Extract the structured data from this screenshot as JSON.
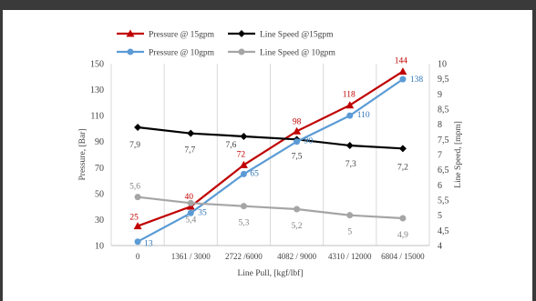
{
  "chart_data": {
    "type": "line",
    "categories": [
      "0",
      "1361 / 3000",
      "2722 /6000",
      "4082 / 9000",
      "4310 / 12000",
      "6804 / 15000"
    ],
    "xlabel": "Line Pull, [kgf/lbf]",
    "ylabel": "Pressure, [Bar]",
    "y2label": "Line Speed, [mpm]",
    "ylim": [
      10,
      150
    ],
    "yticks": [
      10,
      30,
      50,
      70,
      90,
      110,
      130,
      150
    ],
    "y2lim": [
      4,
      10
    ],
    "y2ticks": [
      "4",
      "4,5",
      "5",
      "5,5",
      "6",
      "6,5",
      "7",
      "7,5",
      "8",
      "8,5",
      "9",
      "9,5",
      "10"
    ],
    "grid": "vertical",
    "legend_position": "top",
    "series": [
      {
        "name": "Pressure @ 15gpm",
        "axis": "left",
        "color": "#c00000",
        "marker": "triangle",
        "values": [
          25,
          40,
          72,
          98,
          118,
          144
        ],
        "labels": [
          "25",
          "40",
          "72",
          "98",
          "118",
          "144"
        ]
      },
      {
        "name": "Line Speed @15gpm",
        "axis": "right",
        "color": "#000000",
        "marker": "diamond",
        "values": [
          7.9,
          7.7,
          7.6,
          7.5,
          7.3,
          7.2
        ],
        "labels": [
          "7,9",
          "7,7",
          "7,6",
          "7,5",
          "7,3",
          "7,2"
        ]
      },
      {
        "name": "Pressure @ 10gpm",
        "axis": "left",
        "color": "#5b9bd5",
        "marker": "circle",
        "values": [
          13,
          35,
          65,
          90,
          110,
          138
        ],
        "labels": [
          "13",
          "35",
          "65",
          "90",
          "110",
          "138"
        ]
      },
      {
        "name": "Line Speed @ 10gpm",
        "axis": "right",
        "color": "#a5a5a5",
        "marker": "circle",
        "values": [
          5.6,
          5.4,
          5.3,
          5.2,
          5.0,
          4.9
        ],
        "labels": [
          "5,6",
          "5,4",
          "5,3",
          "5,2",
          "5",
          "4,9"
        ]
      }
    ]
  }
}
